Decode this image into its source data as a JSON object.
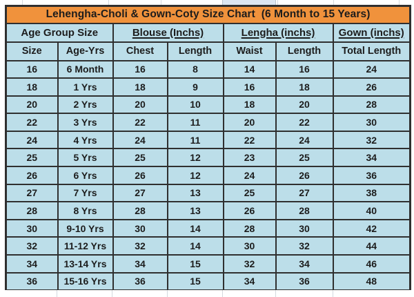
{
  "colors": {
    "title_bg": "#F0923C",
    "cell_bg": "#BCDEE9",
    "border": "#2F2F2F",
    "text": "#1C1C1C"
  },
  "chart_data": {
    "type": "table",
    "title": "Lehengha-Choli & Gown-Coty Size Chart  (6 Month to 15 Years)",
    "group_headers": [
      {
        "label": "Age Group Size",
        "span": 2,
        "underline": false
      },
      {
        "label": "Blouse (Inchs)",
        "span": 2,
        "underline": true
      },
      {
        "label": "Lengha (inchs)",
        "span": 2,
        "underline": true
      },
      {
        "label": "Gown (inchs)",
        "span": 1,
        "underline": true
      }
    ],
    "columns": [
      "Size",
      "Age-Yrs",
      "Chest",
      "Length",
      "Waist",
      "Length",
      "Total Length"
    ],
    "rows": [
      [
        "16",
        "6 Month",
        "16",
        "8",
        "14",
        "16",
        "24"
      ],
      [
        "18",
        "1 Yrs",
        "18",
        "9",
        "16",
        "18",
        "26"
      ],
      [
        "20",
        "2 Yrs",
        "20",
        "10",
        "18",
        "20",
        "28"
      ],
      [
        "22",
        "3 Yrs",
        "22",
        "11",
        "20",
        "22",
        "30"
      ],
      [
        "24",
        "4 Yrs",
        "24",
        "11",
        "22",
        "24",
        "32"
      ],
      [
        "25",
        "5 Yrs",
        "25",
        "12",
        "23",
        "25",
        "34"
      ],
      [
        "26",
        "6 Yrs",
        "26",
        "12",
        "24",
        "26",
        "36"
      ],
      [
        "27",
        "7 Yrs",
        "27",
        "13",
        "25",
        "27",
        "38"
      ],
      [
        "28",
        "8 Yrs",
        "28",
        "13",
        "26",
        "28",
        "40"
      ],
      [
        "30",
        "9-10 Yrs",
        "30",
        "14",
        "28",
        "30",
        "42"
      ],
      [
        "32",
        "11-12 Yrs",
        "32",
        "14",
        "30",
        "32",
        "44"
      ],
      [
        "34",
        "13-14 Yrs",
        "34",
        "15",
        "32",
        "34",
        "46"
      ],
      [
        "36",
        "15-16 Yrs",
        "36",
        "15",
        "34",
        "36",
        "48"
      ]
    ]
  }
}
